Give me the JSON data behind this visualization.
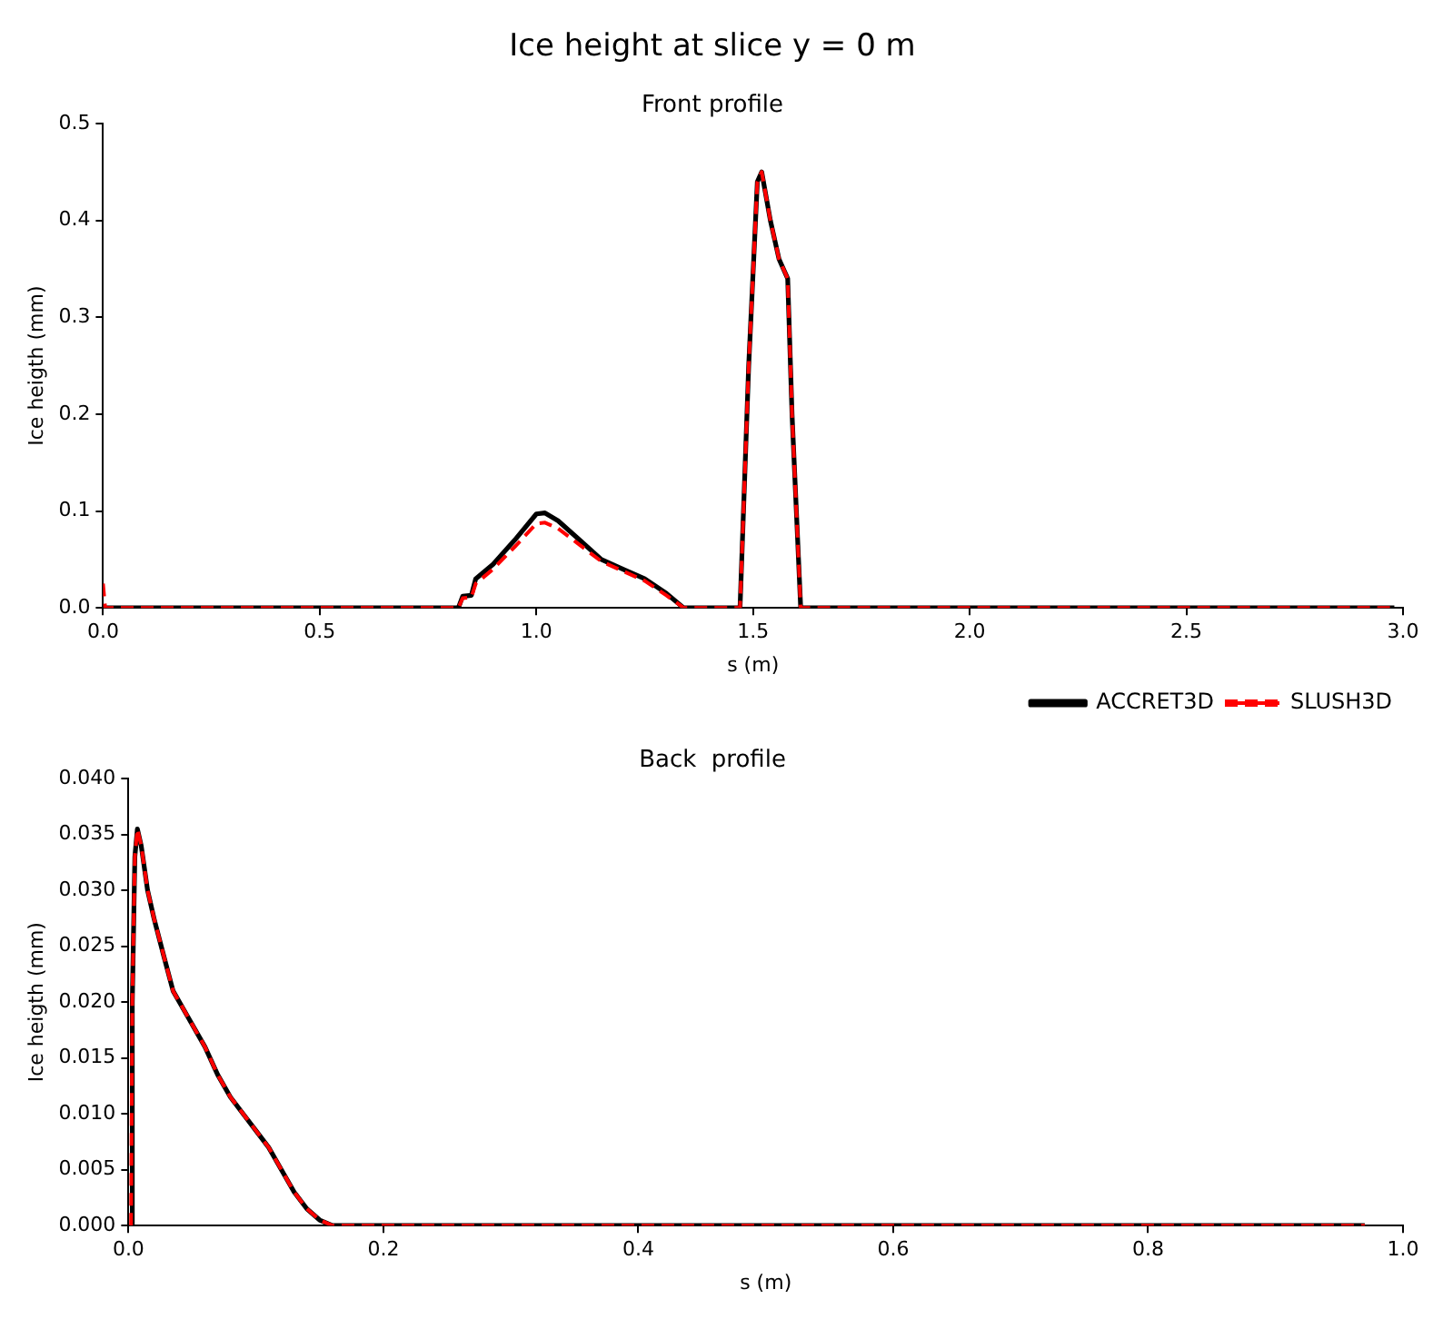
{
  "chart_data": [
    {
      "type": "line",
      "title": "Ice height at slice y = 0 m",
      "subtitle": "Front profile",
      "xlabel": "s (m)",
      "ylabel": "Ice heigth (mm)",
      "xlim": [
        0,
        3.0
      ],
      "ylim": [
        0,
        0.5
      ],
      "xticks": [
        {
          "value": 0,
          "label": "0.0"
        },
        {
          "value": 0.5,
          "label": "0.5"
        },
        {
          "value": 1,
          "label": "1.0"
        },
        {
          "value": 1.5,
          "label": "1.5"
        },
        {
          "value": 2,
          "label": "2.0"
        },
        {
          "value": 2.5,
          "label": "2.5"
        },
        {
          "value": 3,
          "label": "3.0"
        }
      ],
      "yticks": [
        {
          "value": 0,
          "label": "0.0"
        },
        {
          "value": 0.1,
          "label": "0.1"
        },
        {
          "value": 0.2,
          "label": "0.2"
        },
        {
          "value": 0.3,
          "label": "0.3"
        },
        {
          "value": 0.4,
          "label": "0.4"
        },
        {
          "value": 0.5,
          "label": "0.5"
        }
      ],
      "grid": false,
      "legend": "bottom right",
      "marker": "none",
      "series": [
        {
          "name": "ACCRET3D",
          "color": "#000000",
          "line_style": "solid",
          "x": [
            0,
            0.82,
            0.83,
            0.85,
            0.86,
            0.9,
            0.95,
            1.0,
            1.02,
            1.05,
            1.1,
            1.15,
            1.2,
            1.25,
            1.3,
            1.34,
            1.47,
            1.49,
            1.51,
            1.52,
            1.54,
            1.56,
            1.58,
            1.59,
            1.61,
            2.98
          ],
          "values": [
            0,
            0,
            0.012,
            0.013,
            0.03,
            0.045,
            0.07,
            0.097,
            0.098,
            0.09,
            0.07,
            0.05,
            0.04,
            0.03,
            0.015,
            0,
            0,
            0.25,
            0.44,
            0.45,
            0.4,
            0.36,
            0.34,
            0.2,
            0,
            0
          ]
        },
        {
          "name": "SLUSH3D",
          "color": "#ff0000",
          "line_style": "dashed",
          "x": [
            0,
            0.005,
            0.82,
            0.83,
            0.85,
            0.86,
            0.9,
            0.95,
            1.0,
            1.02,
            1.05,
            1.1,
            1.15,
            1.2,
            1.25,
            1.3,
            1.34,
            1.47,
            1.49,
            1.51,
            1.52,
            1.54,
            1.56,
            1.58,
            1.59,
            1.61,
            2.98
          ],
          "values": [
            0.025,
            0,
            0,
            0.01,
            0.011,
            0.025,
            0.04,
            0.063,
            0.087,
            0.088,
            0.082,
            0.065,
            0.048,
            0.038,
            0.028,
            0.013,
            0,
            0,
            0.25,
            0.44,
            0.45,
            0.4,
            0.36,
            0.34,
            0.2,
            0,
            0
          ]
        }
      ]
    },
    {
      "type": "line",
      "title": "Back  profile",
      "xlabel": "s (m)",
      "ylabel": "Ice heigth (mm)",
      "xlim": [
        0,
        1.0
      ],
      "ylim": [
        0,
        0.04
      ],
      "xticks": [
        {
          "value": 0,
          "label": "0.0"
        },
        {
          "value": 0.2,
          "label": "0.2"
        },
        {
          "value": 0.4,
          "label": "0.4"
        },
        {
          "value": 0.6,
          "label": "0.6"
        },
        {
          "value": 0.8,
          "label": "0.8"
        },
        {
          "value": 1,
          "label": "1.0"
        }
      ],
      "yticks": [
        {
          "value": 0,
          "label": "0.000"
        },
        {
          "value": 0.005,
          "label": "0.005"
        },
        {
          "value": 0.01,
          "label": "0.010"
        },
        {
          "value": 0.015,
          "label": "0.015"
        },
        {
          "value": 0.02,
          "label": "0.020"
        },
        {
          "value": 0.025,
          "label": "0.025"
        },
        {
          "value": 0.03,
          "label": "0.030"
        },
        {
          "value": 0.035,
          "label": "0.035"
        },
        {
          "value": 0.04,
          "label": "0.040"
        }
      ],
      "grid": false,
      "marker": "none",
      "series": [
        {
          "color": "#000000",
          "line_style": "solid",
          "x": [
            0.002,
            0.003,
            0.005,
            0.007,
            0.01,
            0.015,
            0.02,
            0.028,
            0.035,
            0.045,
            0.06,
            0.07,
            0.08,
            0.09,
            0.1,
            0.11,
            0.12,
            0.13,
            0.14,
            0.15,
            0.16,
            0.97
          ],
          "values": [
            0,
            0.02,
            0.033,
            0.0355,
            0.034,
            0.03,
            0.0275,
            0.024,
            0.021,
            0.019,
            0.016,
            0.0135,
            0.0115,
            0.01,
            0.0085,
            0.007,
            0.005,
            0.003,
            0.0015,
            0.0005,
            0,
            0
          ]
        },
        {
          "color": "#ff0000",
          "line_style": "dashed",
          "x": [
            0.002,
            0.003,
            0.005,
            0.007,
            0.01,
            0.015,
            0.02,
            0.028,
            0.035,
            0.045,
            0.06,
            0.07,
            0.08,
            0.09,
            0.1,
            0.11,
            0.12,
            0.13,
            0.14,
            0.15,
            0.16,
            0.97
          ],
          "values": [
            0,
            0.02,
            0.033,
            0.0355,
            0.034,
            0.03,
            0.0275,
            0.024,
            0.021,
            0.019,
            0.016,
            0.0135,
            0.0115,
            0.01,
            0.0085,
            0.007,
            0.005,
            0.003,
            0.0015,
            0.0005,
            0,
            0
          ]
        }
      ]
    }
  ]
}
